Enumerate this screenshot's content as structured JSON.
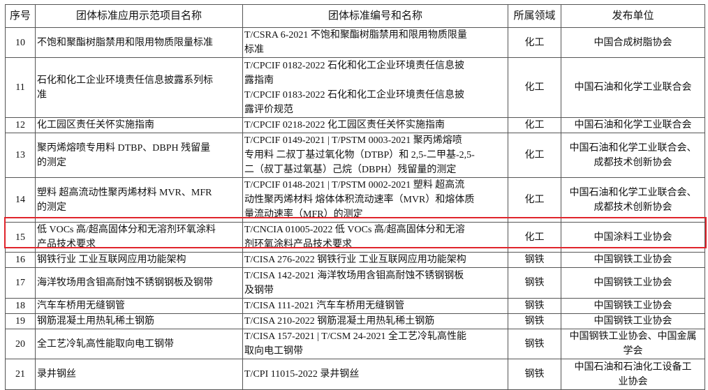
{
  "table": {
    "headers": [
      "序号",
      "团体标准应用示范项目名称",
      "团体标准编号和名称",
      "所属领域",
      "发布单位"
    ],
    "rows": [
      {
        "no": "10",
        "name": [
          "不饱和聚酯树脂禁用和限用物质限量标准"
        ],
        "standard": [
          "T/CSRA 6-2021  不饱和聚酯树脂禁用和限用物质限量",
          "标准"
        ],
        "field": "化工",
        "publisher": [
          "中国合成树脂协会"
        ],
        "h": 42
      },
      {
        "no": "11",
        "name": [
          "石化和化工企业环境责任信息披露系列标",
          "准"
        ],
        "standard": [
          "T/CPCIF 0182-2022  石化和化工企业环境责任信息披",
          "露指南",
          "T/CPCIF 0183-2022  石化和化工企业环境责任信息披",
          "露评价规范"
        ],
        "field": "化工",
        "publisher": [
          "中国石油和化学工业联合会"
        ],
        "h": 86
      },
      {
        "no": "12",
        "name": [
          "化工园区责任关怀实施指南"
        ],
        "standard": [
          "T/CPCIF 0218-2022  化工园区责任关怀实施指南"
        ],
        "field": "化工",
        "publisher": [
          "中国石油和化学工业联合会"
        ],
        "h": 19
      },
      {
        "no": "13",
        "name": [
          "聚丙烯熔喷专用料 DTBP、DBPH 残留量",
          "的测定"
        ],
        "standard": [
          "T/CPCIF 0149-2021 | T/PSTM 0003-2021  聚丙烯熔喷",
          "专用料 二叔丁基过氧化物（DTBP）和 2,5-二甲基-2,5-",
          "二（叔丁基过氧基）己烷（DBPH）残留量的测定"
        ],
        "field": "化工",
        "publisher": [
          "中国石油和化学工业联合会、",
          "成都技术创新协会"
        ],
        "h": 62
      },
      {
        "no": "14",
        "name": [
          "塑料 超高流动性聚丙烯材料 MVR、MFR",
          "的测定"
        ],
        "standard": [
          "T/CPCIF 0148-2021 | T/PSTM 0002-2021  塑料 超高流",
          "动性聚丙烯材料 熔体体积流动速率（MVR）和熔体质",
          "量流动速率（MFR）的测定"
        ],
        "field": "化工",
        "publisher": [
          "中国石油和化学工业联合会、",
          "成都技术创新协会"
        ],
        "h": 64
      },
      {
        "no": "15",
        "name": [
          "低 VOCs 高/超高固体分和无溶剂环氧涂料",
          "产品技术要求"
        ],
        "standard": [
          "T/CNCIA 01005-2022  低 VOCs 高/超高固体分和无溶",
          "剂环氧涂料产品技术要求"
        ],
        "field": "化工",
        "publisher": [
          "中国涂料工业协会"
        ],
        "h": 42,
        "highlighted": true
      },
      {
        "no": "16",
        "name": [
          "钢铁行业 工业互联网应用功能架构"
        ],
        "standard": [
          "T/CISA 276-2022  钢铁行业 工业互联网应用功能架构"
        ],
        "field": "钢铁",
        "publisher": [
          "中国钢铁工业协会"
        ],
        "h": 21
      },
      {
        "no": "17",
        "name": [
          "海洋牧场用含钼高耐蚀不锈钢钢板及钢带"
        ],
        "standard": [
          "T/CISA 142-2021  海洋牧场用含钼高耐蚀不锈钢钢板",
          "及钢带"
        ],
        "field": "钢铁",
        "publisher": [
          "中国钢铁工业协会"
        ],
        "h": 44
      },
      {
        "no": "18",
        "name": [
          "汽车车桥用无缝钢管"
        ],
        "standard": [
          "T/CISA 111-2021  汽车车桥用无缝钢管"
        ],
        "field": "钢铁",
        "publisher": [
          "中国钢铁工业协会"
        ],
        "h": 21
      },
      {
        "no": "19",
        "name": [
          "钢筋混凝土用热轧稀土钢筋"
        ],
        "standard": [
          "T/CISA 210-2022  钢筋混凝土用热轧稀土钢筋"
        ],
        "field": "钢铁",
        "publisher": [
          "中国钢铁工业协会"
        ],
        "h": 21
      },
      {
        "no": "20",
        "name": [
          "全工艺冷轧高性能取向电工钢带"
        ],
        "standard": [
          "T/CISA 157-2021 | T/CSM 24-2021  全工艺冷轧高性能",
          "取向电工钢带"
        ],
        "field": "钢铁",
        "publisher": [
          "中国钢铁工业协会、中国金属",
          "学会"
        ],
        "h": 42
      },
      {
        "no": "21",
        "name": [
          "录井钢丝"
        ],
        "standard": [
          "T/CPI 11015-2022  录井钢丝"
        ],
        "field": "钢铁",
        "publisher": [
          "中国石油和石油化工设备工",
          "业协会"
        ],
        "h": 44
      }
    ]
  },
  "colors": {
    "highlight": "#e0242b",
    "border": "#555555"
  }
}
